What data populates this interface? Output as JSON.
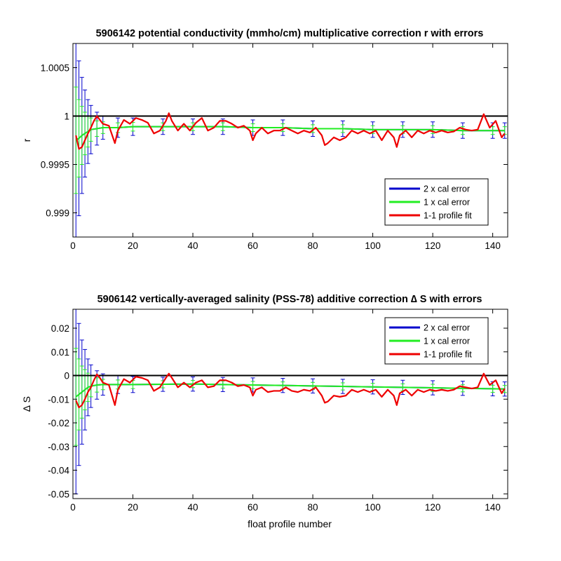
{
  "colors": {
    "two_cal": "#0000cc",
    "one_cal": "#22ee22",
    "fit": "#ee0000",
    "reference": "#000000",
    "axes": "#000000",
    "background": "#ffffff"
  },
  "chart_data": [
    {
      "type": "line",
      "title": "5906142 potential conductivity (mmho/cm) multiplicative correction r with errors",
      "xlabel": "",
      "ylabel": "r",
      "xlim": [
        0,
        145
      ],
      "ylim": [
        0.99875,
        1.00075
      ],
      "xticks": [
        0,
        20,
        40,
        60,
        80,
        100,
        120,
        140
      ],
      "xtick_labels": [
        "0",
        "20",
        "40",
        "60",
        "80",
        "100",
        "120",
        "140"
      ],
      "yticks": [
        0.999,
        0.9995,
        1,
        1.0005
      ],
      "ytick_labels": [
        "0.999",
        "0.9995",
        "1",
        "1.0005"
      ],
      "reference_line": 1,
      "grid": false,
      "legend_position": "bottom-right",
      "legend": [
        "2 x cal error",
        "1 x cal error",
        "1-1 profile fit"
      ],
      "series": [
        {
          "name": "2 x cal error",
          "type": "errorbar",
          "color_key": "two_cal",
          "x": [
            1,
            2,
            3,
            4,
            5,
            6,
            8,
            10,
            15,
            20,
            30,
            40,
            50,
            60,
            70,
            80,
            90,
            100,
            110,
            120,
            130,
            140,
            144
          ],
          "y": [
            0.99975,
            0.99977,
            0.9998,
            0.99982,
            0.99984,
            0.99986,
            0.99987,
            0.99988,
            0.99988,
            0.99989,
            0.99989,
            0.99989,
            0.99989,
            0.99988,
            0.99988,
            0.99987,
            0.99987,
            0.99986,
            0.99986,
            0.99986,
            0.99985,
            0.99985,
            0.99985
          ],
          "err": [
            0.0011,
            0.0008,
            0.0006,
            0.00045,
            0.00033,
            0.00025,
            0.00017,
            0.00012,
            0.0001,
            9e-05,
            8e-05,
            8e-05,
            8e-05,
            8e-05,
            8e-05,
            8e-05,
            8e-05,
            8e-05,
            8e-05,
            8e-05,
            8e-05,
            8e-05,
            8e-05
          ]
        },
        {
          "name": "1 x cal error",
          "type": "errorbar",
          "color_key": "one_cal",
          "x": [
            1,
            2,
            3,
            4,
            5,
            6,
            8,
            10,
            15,
            20,
            30,
            40,
            50,
            60,
            70,
            80,
            90,
            100,
            110,
            120,
            130,
            140,
            144
          ],
          "y": [
            0.99975,
            0.99977,
            0.9998,
            0.99982,
            0.99984,
            0.99986,
            0.99987,
            0.99988,
            0.99988,
            0.99989,
            0.99989,
            0.99989,
            0.99989,
            0.99988,
            0.99988,
            0.99987,
            0.99987,
            0.99986,
            0.99986,
            0.99986,
            0.99985,
            0.99985,
            0.99985
          ],
          "err": [
            0.00055,
            0.0004,
            0.0003,
            0.00022,
            0.00016,
            0.00012,
            8e-05,
            6e-05,
            5e-05,
            4.5e-05,
            4e-05,
            4e-05,
            4e-05,
            4e-05,
            4e-05,
            4e-05,
            4e-05,
            4e-05,
            4e-05,
            4e-05,
            4e-05,
            4e-05,
            4e-05
          ]
        },
        {
          "name": "1-1 profile fit",
          "type": "line",
          "color_key": "fit",
          "x": [
            1,
            2,
            3,
            4,
            5,
            6,
            7,
            8,
            9,
            10,
            12,
            14,
            15,
            17,
            19,
            21,
            23,
            25,
            27,
            29,
            31,
            32,
            33,
            35,
            37,
            39,
            41,
            43,
            45,
            47,
            49,
            51,
            53,
            55,
            57,
            59,
            60,
            61,
            63,
            65,
            67,
            69,
            71,
            73,
            75,
            77,
            79,
            81,
            83,
            84,
            85,
            87,
            89,
            91,
            93,
            95,
            97,
            99,
            101,
            103,
            105,
            107,
            108,
            109,
            111,
            113,
            115,
            117,
            119,
            121,
            123,
            125,
            127,
            129,
            131,
            133,
            135,
            137,
            139,
            141,
            143,
            144
          ],
          "y": [
            0.9998,
            0.99966,
            0.99968,
            0.99975,
            0.99982,
            0.99988,
            0.99995,
            1.0,
            0.99996,
            0.99992,
            0.9999,
            0.99972,
            0.99985,
            0.99996,
            0.99992,
            0.99998,
            0.99996,
            0.99993,
            0.99982,
            0.99985,
            0.99995,
            1.00003,
            0.99995,
            0.99985,
            0.99992,
            0.99985,
            0.99993,
            0.99998,
            0.99985,
            0.99988,
            0.99995,
            0.99995,
            0.99992,
            0.99988,
            0.9999,
            0.99985,
            0.99975,
            0.99982,
            0.99988,
            0.99982,
            0.99985,
            0.99985,
            0.99988,
            0.99985,
            0.99982,
            0.99985,
            0.99983,
            0.99988,
            0.9998,
            0.9997,
            0.99972,
            0.99978,
            0.99975,
            0.99978,
            0.99985,
            0.99982,
            0.99985,
            0.99982,
            0.99985,
            0.99975,
            0.99985,
            0.99978,
            0.99968,
            0.9998,
            0.99985,
            0.99978,
            0.99985,
            0.99982,
            0.99985,
            0.99983,
            0.99985,
            0.99983,
            0.99984,
            0.99988,
            0.99986,
            0.99985,
            0.99986,
            1.00002,
            0.99988,
            0.99995,
            0.99978,
            0.99982
          ]
        }
      ]
    },
    {
      "type": "line",
      "title": "5906142 vertically-averaged salinity (PSS-78) additive correction ∆ S with errors",
      "xlabel": "float profile number",
      "ylabel": "∆ S",
      "xlim": [
        0,
        145
      ],
      "ylim": [
        -0.052,
        0.028
      ],
      "xticks": [
        0,
        20,
        40,
        60,
        80,
        100,
        120,
        140
      ],
      "xtick_labels": [
        "0",
        "20",
        "40",
        "60",
        "80",
        "100",
        "120",
        "140"
      ],
      "yticks": [
        -0.05,
        -0.04,
        -0.03,
        -0.02,
        -0.01,
        0,
        0.01,
        0.02
      ],
      "ytick_labels": [
        "-0.05",
        "-0.04",
        "-0.03",
        "-0.02",
        "-0.01",
        "0",
        "0.01",
        "0.02"
      ],
      "reference_line": 0,
      "grid": false,
      "legend_position": "top-right",
      "legend": [
        "2 x cal error",
        "1 x cal error",
        "1-1 profile fit"
      ],
      "series": [
        {
          "name": "2 x cal error",
          "type": "errorbar",
          "color_key": "two_cal",
          "x": [
            1,
            2,
            3,
            4,
            5,
            6,
            8,
            10,
            15,
            20,
            30,
            40,
            50,
            60,
            70,
            80,
            90,
            100,
            110,
            120,
            130,
            140,
            144
          ],
          "y": [
            -0.009,
            -0.008,
            -0.007,
            -0.006,
            -0.005,
            -0.0045,
            -0.004,
            -0.0038,
            -0.0038,
            -0.0038,
            -0.0037,
            -0.0036,
            -0.0038,
            -0.004,
            -0.0042,
            -0.0044,
            -0.0046,
            -0.0048,
            -0.005,
            -0.0052,
            -0.0054,
            -0.0056,
            -0.0057
          ],
          "err": [
            0.041,
            0.03,
            0.022,
            0.017,
            0.012,
            0.009,
            0.006,
            0.0045,
            0.0038,
            0.0034,
            0.003,
            0.003,
            0.003,
            0.003,
            0.003,
            0.003,
            0.003,
            0.003,
            0.003,
            0.003,
            0.003,
            0.003,
            0.003
          ]
        },
        {
          "name": "1 x cal error",
          "type": "errorbar",
          "color_key": "one_cal",
          "x": [
            1,
            2,
            3,
            4,
            5,
            6,
            8,
            10,
            15,
            20,
            30,
            40,
            50,
            60,
            70,
            80,
            90,
            100,
            110,
            120,
            130,
            140,
            144
          ],
          "y": [
            -0.009,
            -0.008,
            -0.007,
            -0.006,
            -0.005,
            -0.0045,
            -0.004,
            -0.0038,
            -0.0038,
            -0.0038,
            -0.0037,
            -0.0036,
            -0.0038,
            -0.004,
            -0.0042,
            -0.0044,
            -0.0046,
            -0.0048,
            -0.005,
            -0.0052,
            -0.0054,
            -0.0056,
            -0.0057
          ],
          "err": [
            0.0205,
            0.015,
            0.011,
            0.0085,
            0.006,
            0.0045,
            0.003,
            0.0022,
            0.0019,
            0.0017,
            0.0015,
            0.0015,
            0.0015,
            0.0015,
            0.0015,
            0.0015,
            0.0015,
            0.0015,
            0.0015,
            0.0015,
            0.0015,
            0.0015,
            0.0015
          ]
        },
        {
          "name": "1-1 profile fit",
          "type": "line",
          "color_key": "fit",
          "x": [
            1,
            2,
            3,
            4,
            5,
            6,
            7,
            8,
            9,
            10,
            12,
            14,
            15,
            17,
            19,
            21,
            23,
            25,
            27,
            29,
            31,
            32,
            33,
            35,
            37,
            39,
            41,
            43,
            45,
            47,
            49,
            51,
            53,
            55,
            57,
            59,
            60,
            61,
            63,
            65,
            67,
            69,
            71,
            73,
            75,
            77,
            79,
            81,
            83,
            84,
            85,
            87,
            89,
            91,
            93,
            95,
            97,
            99,
            101,
            103,
            105,
            107,
            108,
            109,
            111,
            113,
            115,
            117,
            119,
            121,
            123,
            125,
            127,
            129,
            131,
            133,
            135,
            137,
            139,
            141,
            143,
            144
          ],
          "y": [
            -0.0105,
            -0.0135,
            -0.0125,
            -0.01,
            -0.007,
            -0.005,
            -0.002,
            0.0005,
            -0.001,
            -0.003,
            -0.004,
            -0.0125,
            -0.006,
            -0.0015,
            -0.003,
            -0.0005,
            -0.001,
            -0.002,
            -0.0065,
            -0.005,
            -0.001,
            0.0008,
            -0.001,
            -0.005,
            -0.003,
            -0.005,
            -0.003,
            -0.002,
            -0.005,
            -0.0045,
            -0.002,
            -0.002,
            -0.003,
            -0.0045,
            -0.004,
            -0.005,
            -0.0085,
            -0.006,
            -0.005,
            -0.007,
            -0.0065,
            -0.0065,
            -0.005,
            -0.0065,
            -0.007,
            -0.006,
            -0.0065,
            -0.005,
            -0.0085,
            -0.0115,
            -0.011,
            -0.0085,
            -0.009,
            -0.0085,
            -0.006,
            -0.007,
            -0.006,
            -0.007,
            -0.006,
            -0.009,
            -0.006,
            -0.0085,
            -0.0125,
            -0.0075,
            -0.006,
            -0.0085,
            -0.006,
            -0.007,
            -0.006,
            -0.0065,
            -0.006,
            -0.0065,
            -0.006,
            -0.0045,
            -0.005,
            -0.0055,
            -0.005,
            0.0008,
            -0.004,
            -0.002,
            -0.0075,
            -0.0055
          ]
        }
      ]
    }
  ]
}
